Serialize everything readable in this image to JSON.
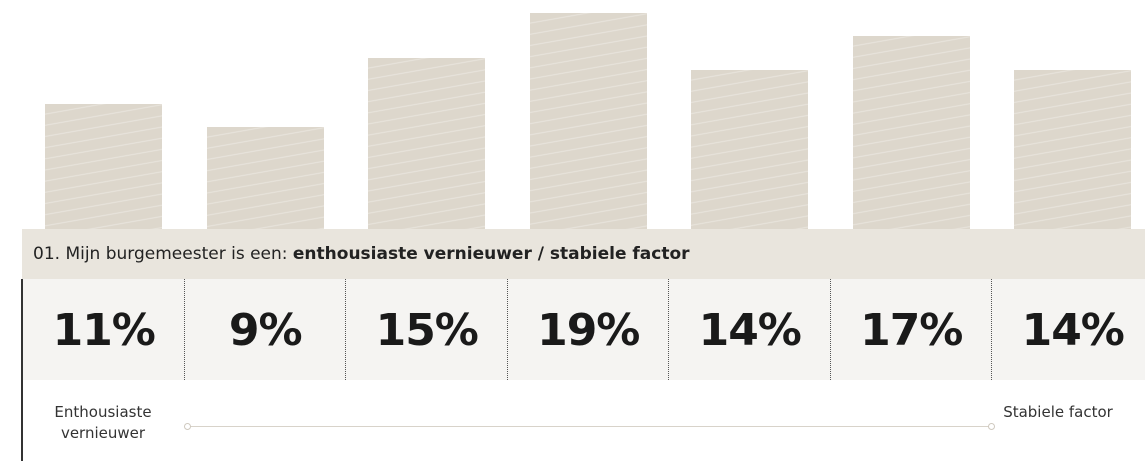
{
  "chart_data": {
    "type": "bar",
    "title": "01. Mijn burgemeester is een:",
    "title_emphasis": "enthousiaste vernieuwer / stabiele factor",
    "values": [
      11,
      9,
      15,
      19,
      14,
      17,
      14
    ],
    "value_labels": [
      "11%",
      "9%",
      "15%",
      "19%",
      "14%",
      "17%",
      "14%"
    ],
    "color": "#ddd7cc",
    "scale_labels": [
      "Enthousiaste vernieuwer",
      "Stabiele factor"
    ]
  }
}
